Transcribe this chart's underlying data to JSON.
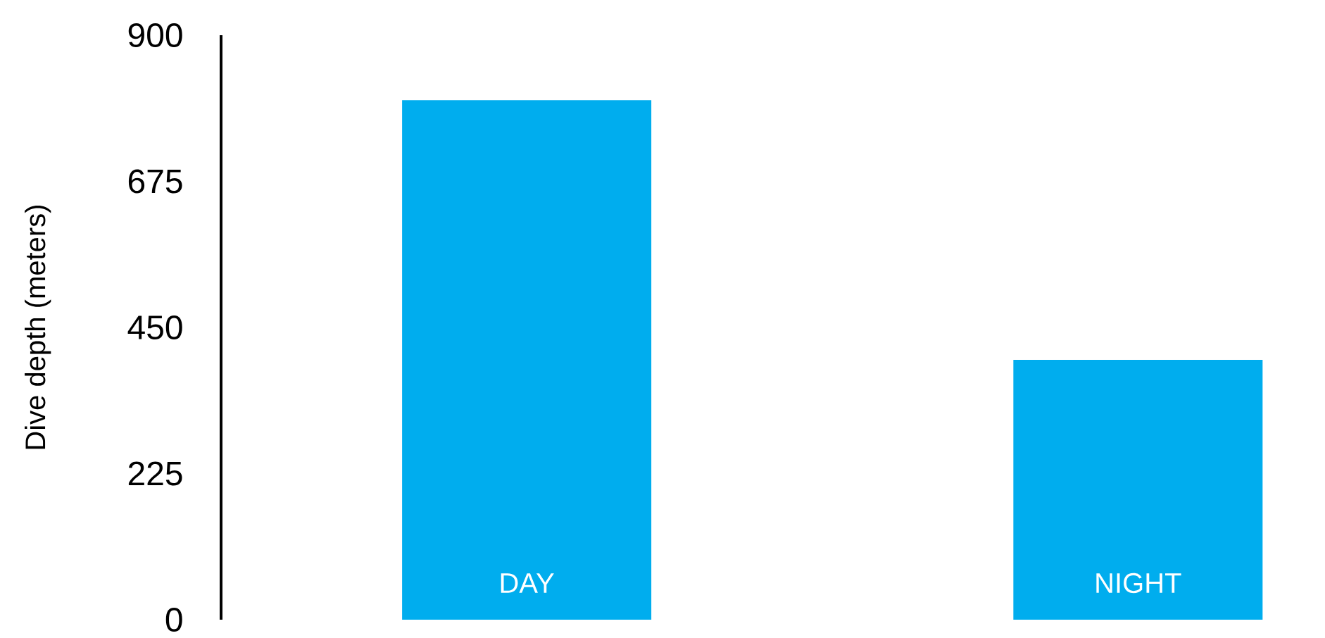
{
  "chart_data": {
    "type": "bar",
    "ylabel": "Dive depth (meters)",
    "categories": [
      "DAY",
      "NIGHT"
    ],
    "values": [
      800,
      400
    ],
    "color": "#00adee",
    "ylim": [
      0,
      900
    ],
    "yticks": [
      0,
      225,
      450,
      675,
      900
    ]
  }
}
